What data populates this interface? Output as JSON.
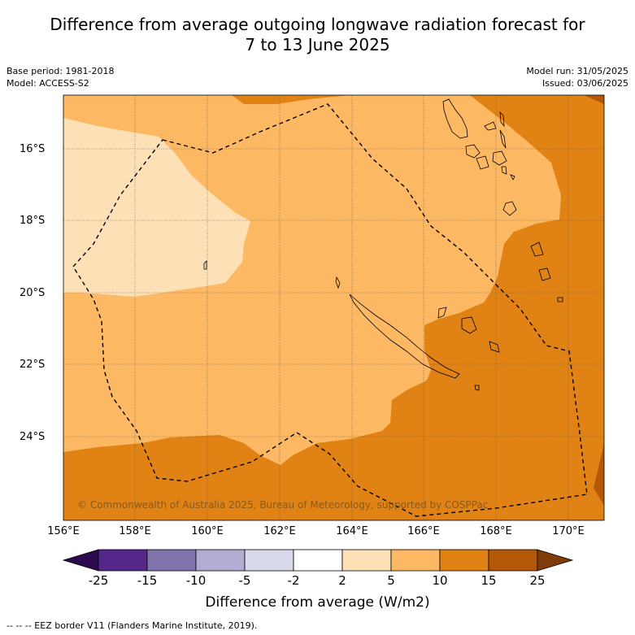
{
  "title_line1": "Difference from average outgoing longwave radiation forecast for",
  "title_line2": "7 to 13 June 2025",
  "meta_left": {
    "base_period": "Base period: 1981-2018",
    "model": "Model: ACCESS-S2"
  },
  "meta_right": {
    "model_run": "Model run: 31/05/2025",
    "issued": "Issued: 03/06/2025"
  },
  "copyright": "© Commonwealth of Australia 2025, Bureau of Meteorology, supported by COSPPac",
  "lat_labels": [
    "16°S",
    "18°S",
    "20°S",
    "22°S",
    "24°S"
  ],
  "lon_labels": [
    "156°E",
    "158°E",
    "160°E",
    "162°E",
    "164°E",
    "166°E",
    "168°E",
    "170°E"
  ],
  "colorbar": {
    "title": "Difference from average (W/m2)",
    "ticks": [
      "-25",
      "-15",
      "-10",
      "-5",
      "-2",
      "2",
      "5",
      "10",
      "15",
      "25"
    ],
    "colors": [
      "#2d0a4e",
      "#542788",
      "#8073ac",
      "#b2abd2",
      "#d8daeb",
      "#ffffff",
      "#fee0b6",
      "#fdb863",
      "#e08214",
      "#b35806",
      "#7f3b08"
    ]
  },
  "footer": "--  --  -- EEZ border V11 (Flanders Marine Institute, 2019)."
}
